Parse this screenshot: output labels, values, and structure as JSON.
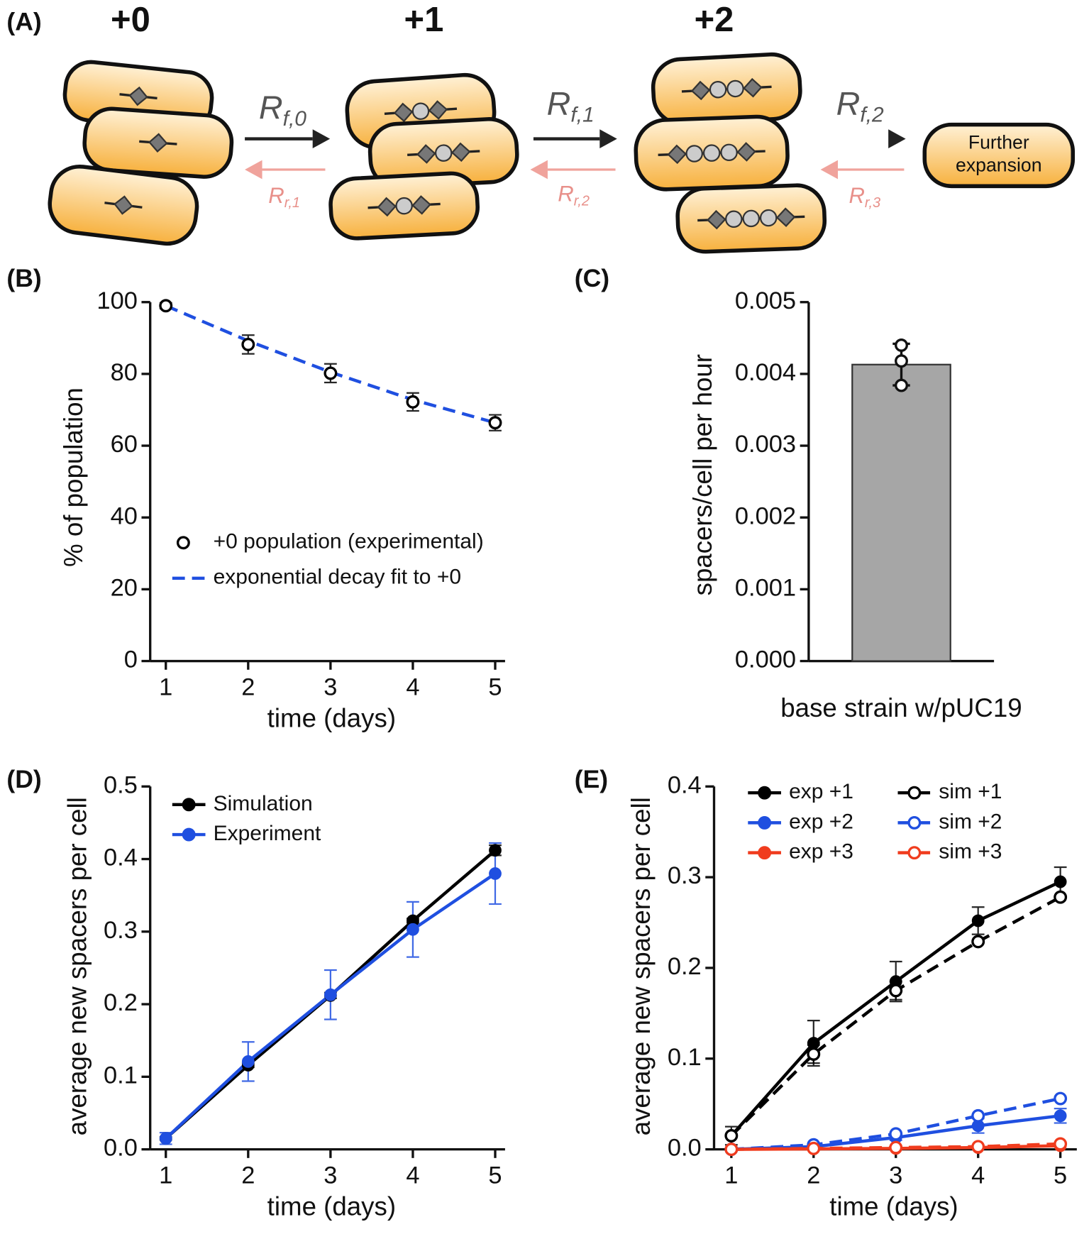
{
  "diagram": {
    "panel": "(A)",
    "states": [
      "+0",
      "+1",
      "+2"
    ],
    "forward": [
      {
        "main": "R",
        "sub": "f,0"
      },
      {
        "main": "R",
        "sub": "f,1"
      },
      {
        "main": "R",
        "sub": "f,2"
      }
    ],
    "reverse": [
      {
        "main": "R",
        "sub": "r,1"
      },
      {
        "main": "R",
        "sub": "r,2"
      },
      {
        "main": "R",
        "sub": "r,3"
      }
    ],
    "further": [
      "Further",
      "expansion"
    ]
  },
  "chart_data": [
    {
      "type": "line",
      "panel": "(B)",
      "x_label": "time (days)",
      "y_label": "% of population",
      "x": [
        1,
        2,
        3,
        4,
        5
      ],
      "xlim": [
        0.81,
        5.12
      ],
      "xticks": [
        1,
        2,
        3,
        4,
        5
      ],
      "ylim": [
        0,
        100
      ],
      "yticks": [
        0,
        20,
        40,
        60,
        80,
        100
      ],
      "legend": "lower left",
      "series": [
        {
          "name": "+0 population (experimental)",
          "color": "#000000",
          "line_style": "none",
          "marker": "open",
          "values": [
            99,
            88.2,
            80.2,
            72.2,
            66.4
          ],
          "errors": [
            0.8,
            2.6,
            2.6,
            2.5,
            2.2
          ]
        },
        {
          "name": "exponential decay fit to +0",
          "color": "#1f4fe0",
          "line_style": "dashed",
          "marker": "none",
          "values": [
            99,
            89.2,
            80.5,
            72.8,
            66.4
          ]
        }
      ]
    },
    {
      "type": "bar",
      "panel": "(C)",
      "y_label": "spacers/cell per hour",
      "categories": [
        "base strain w/pUC19"
      ],
      "values": [
        0.00413
      ],
      "errors": [
        0.00029
      ],
      "points": [
        0.0044,
        0.00418,
        0.00384
      ],
      "color": "#a6a6a6",
      "ylim": [
        0,
        0.005
      ],
      "yticks": [
        {
          "value": 0,
          "label": "0.000"
        },
        {
          "value": 0.001,
          "label": "0.001"
        },
        {
          "value": 0.002,
          "label": "0.002"
        },
        {
          "value": 0.003,
          "label": "0.003"
        },
        {
          "value": 0.004,
          "label": "0.004"
        },
        {
          "value": 0.005,
          "label": "0.005"
        }
      ]
    },
    {
      "type": "line",
      "panel": "(D)",
      "x_label": "time (days)",
      "y_label": "average new spacers per cell",
      "x": [
        1,
        2,
        3,
        4,
        5
      ],
      "xlim": [
        0.81,
        5.12
      ],
      "xticks": [
        1,
        2,
        3,
        4,
        5
      ],
      "ylim": [
        0,
        0.5
      ],
      "yticks": [
        {
          "value": 0,
          "label": "0.0"
        },
        0.1,
        0.2,
        0.3,
        0.4,
        0.5
      ],
      "legend": "upper left",
      "series": [
        {
          "name": "Simulation",
          "color": "#000000",
          "line_style": "solid",
          "marker": "filled",
          "values": [
            0.015,
            0.116,
            0.212,
            0.315,
            0.412
          ],
          "errors": [
            0.002,
            0.003,
            0.004,
            0.003,
            0.007
          ]
        },
        {
          "name": "Experiment",
          "color": "#1f4fe0",
          "line_style": "solid",
          "marker": "filled",
          "values": [
            0.015,
            0.121,
            0.213,
            0.303,
            0.38
          ],
          "errors": [
            0.008,
            0.027,
            0.034,
            0.038,
            0.042
          ]
        }
      ]
    },
    {
      "type": "line",
      "panel": "(E)",
      "x_label": "time (days)",
      "y_label": "average new spacers per cell",
      "x": [
        1,
        2,
        3,
        4,
        5
      ],
      "xlim": [
        0.79,
        5.2
      ],
      "xticks": [
        1,
        2,
        3,
        4,
        5
      ],
      "ylim": [
        0,
        0.4
      ],
      "yticks": [
        {
          "value": 0,
          "label": "0.0"
        },
        0.1,
        0.2,
        0.3,
        0.4
      ],
      "legend": "upper left",
      "series": [
        {
          "name": "exp +1",
          "color": "#000000",
          "line_style": "solid",
          "marker": "filled",
          "values": [
            0.015,
            0.117,
            0.185,
            0.252,
            0.295
          ],
          "errors": [
            0.01,
            0.025,
            0.022,
            0.015,
            0.016
          ]
        },
        {
          "name": "exp +2",
          "color": "#1f4fe0",
          "line_style": "solid",
          "marker": "filled",
          "values": [
            0,
            0.003,
            0.013,
            0.026,
            0.037
          ],
          "errors": [
            0,
            0.001,
            0.003,
            0.008,
            0.008
          ]
        },
        {
          "name": "exp +3",
          "color": "#f03c1e",
          "line_style": "solid",
          "marker": "filled",
          "values": [
            0,
            0.0005,
            0.001,
            0.002,
            0.004
          ]
        },
        {
          "name": "sim +1",
          "color": "#000000",
          "line_style": "dashed",
          "marker": "open",
          "values": [
            0.015,
            0.105,
            0.175,
            0.229,
            0.278
          ],
          "errors": [
            0,
            0.01,
            0.01,
            0,
            0
          ]
        },
        {
          "name": "sim +2",
          "color": "#1f4fe0",
          "line_style": "dashed",
          "marker": "open",
          "values": [
            0,
            0.005,
            0.017,
            0.037,
            0.056
          ]
        },
        {
          "name": "sim +3",
          "color": "#f03c1e",
          "line_style": "dashed",
          "marker": "open",
          "values": [
            0,
            0.001,
            0.002,
            0.003,
            0.006
          ]
        }
      ]
    }
  ]
}
